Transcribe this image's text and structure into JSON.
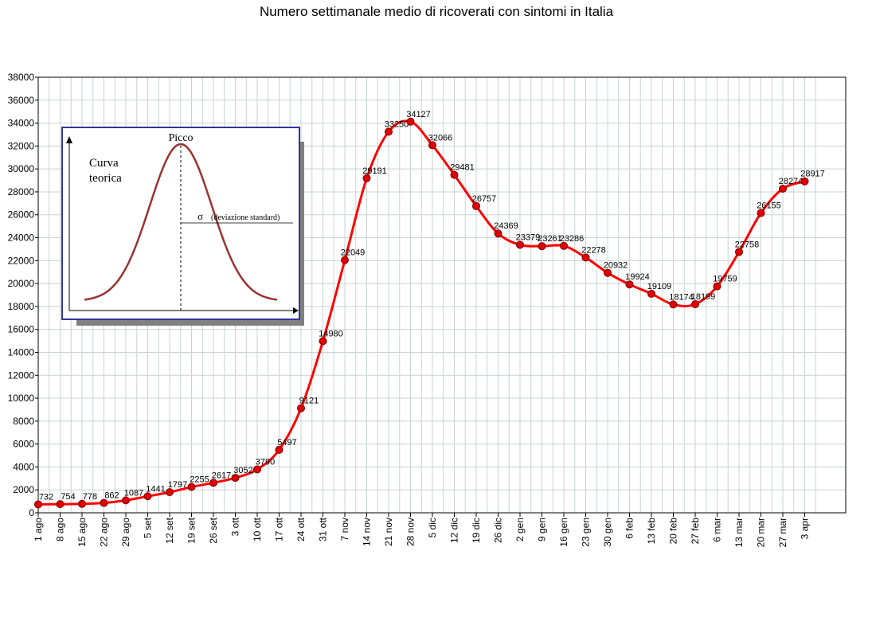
{
  "chart_data": {
    "type": "line",
    "title": "Numero settimanale medio di ricoverati con sintomi in Italia",
    "xlabel": "",
    "ylabel": "",
    "ylim": [
      0,
      38000
    ],
    "y_ticks": [
      0,
      2000,
      4000,
      6000,
      8000,
      10000,
      12000,
      14000,
      16000,
      18000,
      20000,
      22000,
      24000,
      26000,
      28000,
      30000,
      32000,
      34000,
      36000,
      38000
    ],
    "grid": true,
    "categories": [
      "1 ago",
      "8 ago",
      "15 ago",
      "22 ago",
      "29 ago",
      "5 set",
      "12 set",
      "19 set",
      "26 set",
      "3 ott",
      "10 ott",
      "17 ott",
      "24 ott",
      "31 ott",
      "7 nov",
      "14 nov",
      "21 nov",
      "28 nov",
      "5 dic",
      "12 dic",
      "19 dic",
      "26 dic",
      "2 gen",
      "9 gen",
      "16 gen",
      "23 gen",
      "30 gen",
      "6 feb",
      "13 feb",
      "20 feb",
      "27 feb",
      "6 mar",
      "13 mar",
      "20 mar",
      "27 mar",
      "3 apr"
    ],
    "values": [
      732,
      754,
      778,
      862,
      1087,
      1441,
      1797,
      2255,
      2617,
      3052,
      3790,
      5497,
      9121,
      14980,
      22049,
      29191,
      33250,
      34127,
      32066,
      29481,
      26757,
      24369,
      23379,
      23261,
      23286,
      22278,
      20932,
      19924,
      19109,
      18174,
      18199,
      19759,
      22758,
      26155,
      28274,
      28917
    ],
    "line_color": "#ff0000",
    "marker_color": "#e00000",
    "grid_color": "#c8d3d3"
  },
  "inset": {
    "y_label": "Curva\nteorica",
    "peak_label": "Picco",
    "sigma_symbol": "σ",
    "sigma_label": "(deviazione standard)",
    "frame_color": "#333399",
    "curve_color": "#993333"
  }
}
